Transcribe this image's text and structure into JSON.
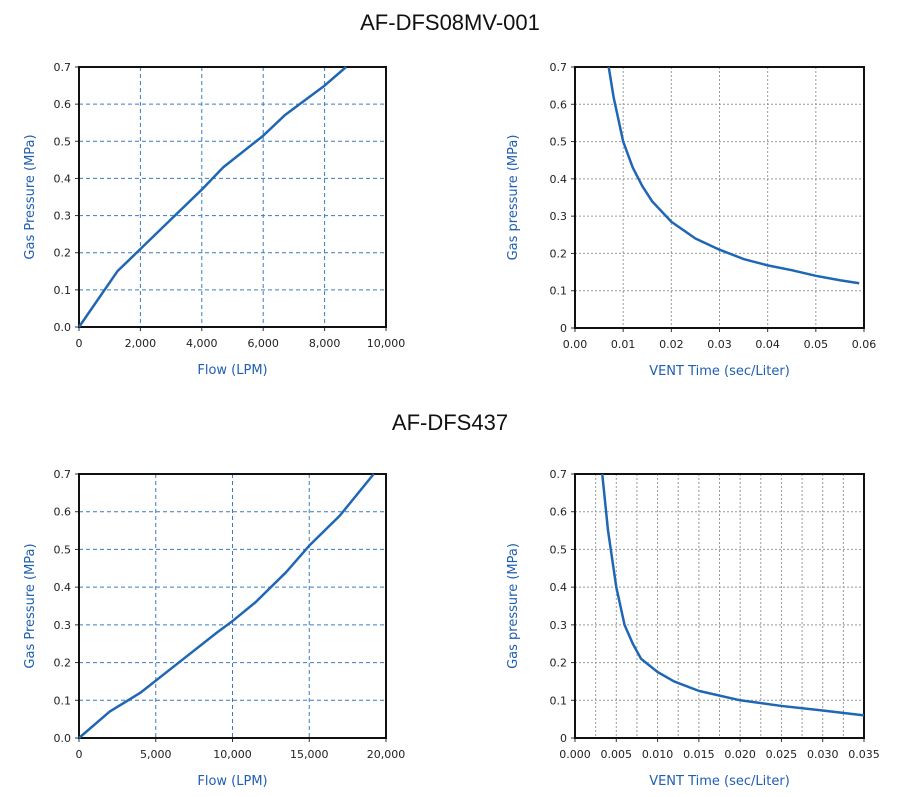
{
  "titles": [
    "AF-DFS08MV-001",
    "AF-DFS437"
  ],
  "colors": {
    "line": "#1f67b4",
    "label": "#1f5fb0",
    "grid_blue": "#3a7cc0",
    "grid_gray": "#999999"
  },
  "chart_data": [
    {
      "type": "line",
      "title": "AF-DFS08MV-001",
      "xlabel": "Flow (LPM)",
      "ylabel": "Gas Pressure (MPa)",
      "xlim": [
        0,
        10000
      ],
      "ylim": [
        0,
        0.7
      ],
      "xticks": [
        "0",
        "2,000",
        "4,000",
        "6,000",
        "8,000",
        "10,000"
      ],
      "xtick_values": [
        0,
        2000,
        4000,
        6000,
        8000,
        10000
      ],
      "yticks": [
        "0.0",
        "0.1",
        "0.2",
        "0.3",
        "0.4",
        "0.5",
        "0.6",
        "0.7"
      ],
      "grid": "dashed-blue",
      "xgrid_step": 2000,
      "x": [
        0,
        1250,
        2000,
        3000,
        4000,
        4700,
        6000,
        6700,
        8000,
        8700
      ],
      "y": [
        0,
        0.15,
        0.21,
        0.29,
        0.37,
        0.43,
        0.515,
        0.57,
        0.65,
        0.7
      ]
    },
    {
      "type": "line",
      "title": "AF-DFS08MV-001",
      "xlabel": "VENT Time (sec/Liter)",
      "ylabel": "Gas pressure (MPa)",
      "xlim": [
        0,
        0.06
      ],
      "ylim": [
        0,
        0.7
      ],
      "xticks": [
        "0.00",
        "0.01",
        "0.02",
        "0.03",
        "0.04",
        "0.05",
        "0.06"
      ],
      "xtick_values": [
        0,
        0.01,
        0.02,
        0.03,
        0.04,
        0.05,
        0.06
      ],
      "yticks": [
        "0",
        "0.1",
        "0.2",
        "0.3",
        "0.4",
        "0.5",
        "0.6",
        "0.7"
      ],
      "grid": "dotted-gray",
      "xgrid_step": 0.01,
      "x": [
        0.007,
        0.008,
        0.009,
        0.01,
        0.012,
        0.014,
        0.016,
        0.02,
        0.025,
        0.03,
        0.035,
        0.04,
        0.045,
        0.05,
        0.055,
        0.059
      ],
      "y": [
        0.7,
        0.62,
        0.56,
        0.5,
        0.43,
        0.38,
        0.34,
        0.285,
        0.24,
        0.21,
        0.185,
        0.168,
        0.155,
        0.14,
        0.128,
        0.12
      ]
    },
    {
      "type": "line",
      "title": "AF-DFS437",
      "xlabel": "Flow (LPM)",
      "ylabel": "Gas Pressure (MPa)",
      "xlim": [
        0,
        20000
      ],
      "ylim": [
        0,
        0.7
      ],
      "xticks": [
        "0",
        "5,000",
        "10,000",
        "15,000",
        "20,000"
      ],
      "xtick_values": [
        0,
        5000,
        10000,
        15000,
        20000
      ],
      "yticks": [
        "0.0",
        "0.1",
        "0.2",
        "0.3",
        "0.4",
        "0.5",
        "0.6",
        "0.7"
      ],
      "grid": "dashed-blue",
      "xgrid_step": 5000,
      "x": [
        0,
        2000,
        4000,
        6500,
        9000,
        10000,
        11500,
        13500,
        15000,
        17000,
        19200
      ],
      "y": [
        0,
        0.07,
        0.12,
        0.2,
        0.28,
        0.31,
        0.36,
        0.44,
        0.51,
        0.59,
        0.7
      ]
    },
    {
      "type": "line",
      "title": "AF-DFS437",
      "xlabel": "VENT Time (sec/Liter)",
      "ylabel": "Gas pressure (MPa)",
      "xlim": [
        0,
        0.035
      ],
      "ylim": [
        0,
        0.7
      ],
      "xticks": [
        "0.000",
        "0.005",
        "0.010",
        "0.015",
        "0.020",
        "0.025",
        "0.030",
        "0.035"
      ],
      "xtick_values": [
        0,
        0.005,
        0.01,
        0.015,
        0.02,
        0.025,
        0.03,
        0.035
      ],
      "yticks": [
        "0",
        "0.1",
        "0.2",
        "0.3",
        "0.4",
        "0.5",
        "0.6",
        "0.7"
      ],
      "grid": "dotted-gray",
      "xgrid_step": 0.0025,
      "x": [
        0.0033,
        0.004,
        0.005,
        0.006,
        0.007,
        0.008,
        0.01,
        0.012,
        0.015,
        0.02,
        0.025,
        0.03,
        0.035
      ],
      "y": [
        0.7,
        0.55,
        0.4,
        0.3,
        0.25,
        0.21,
        0.175,
        0.15,
        0.125,
        0.1,
        0.085,
        0.073,
        0.06
      ]
    }
  ]
}
